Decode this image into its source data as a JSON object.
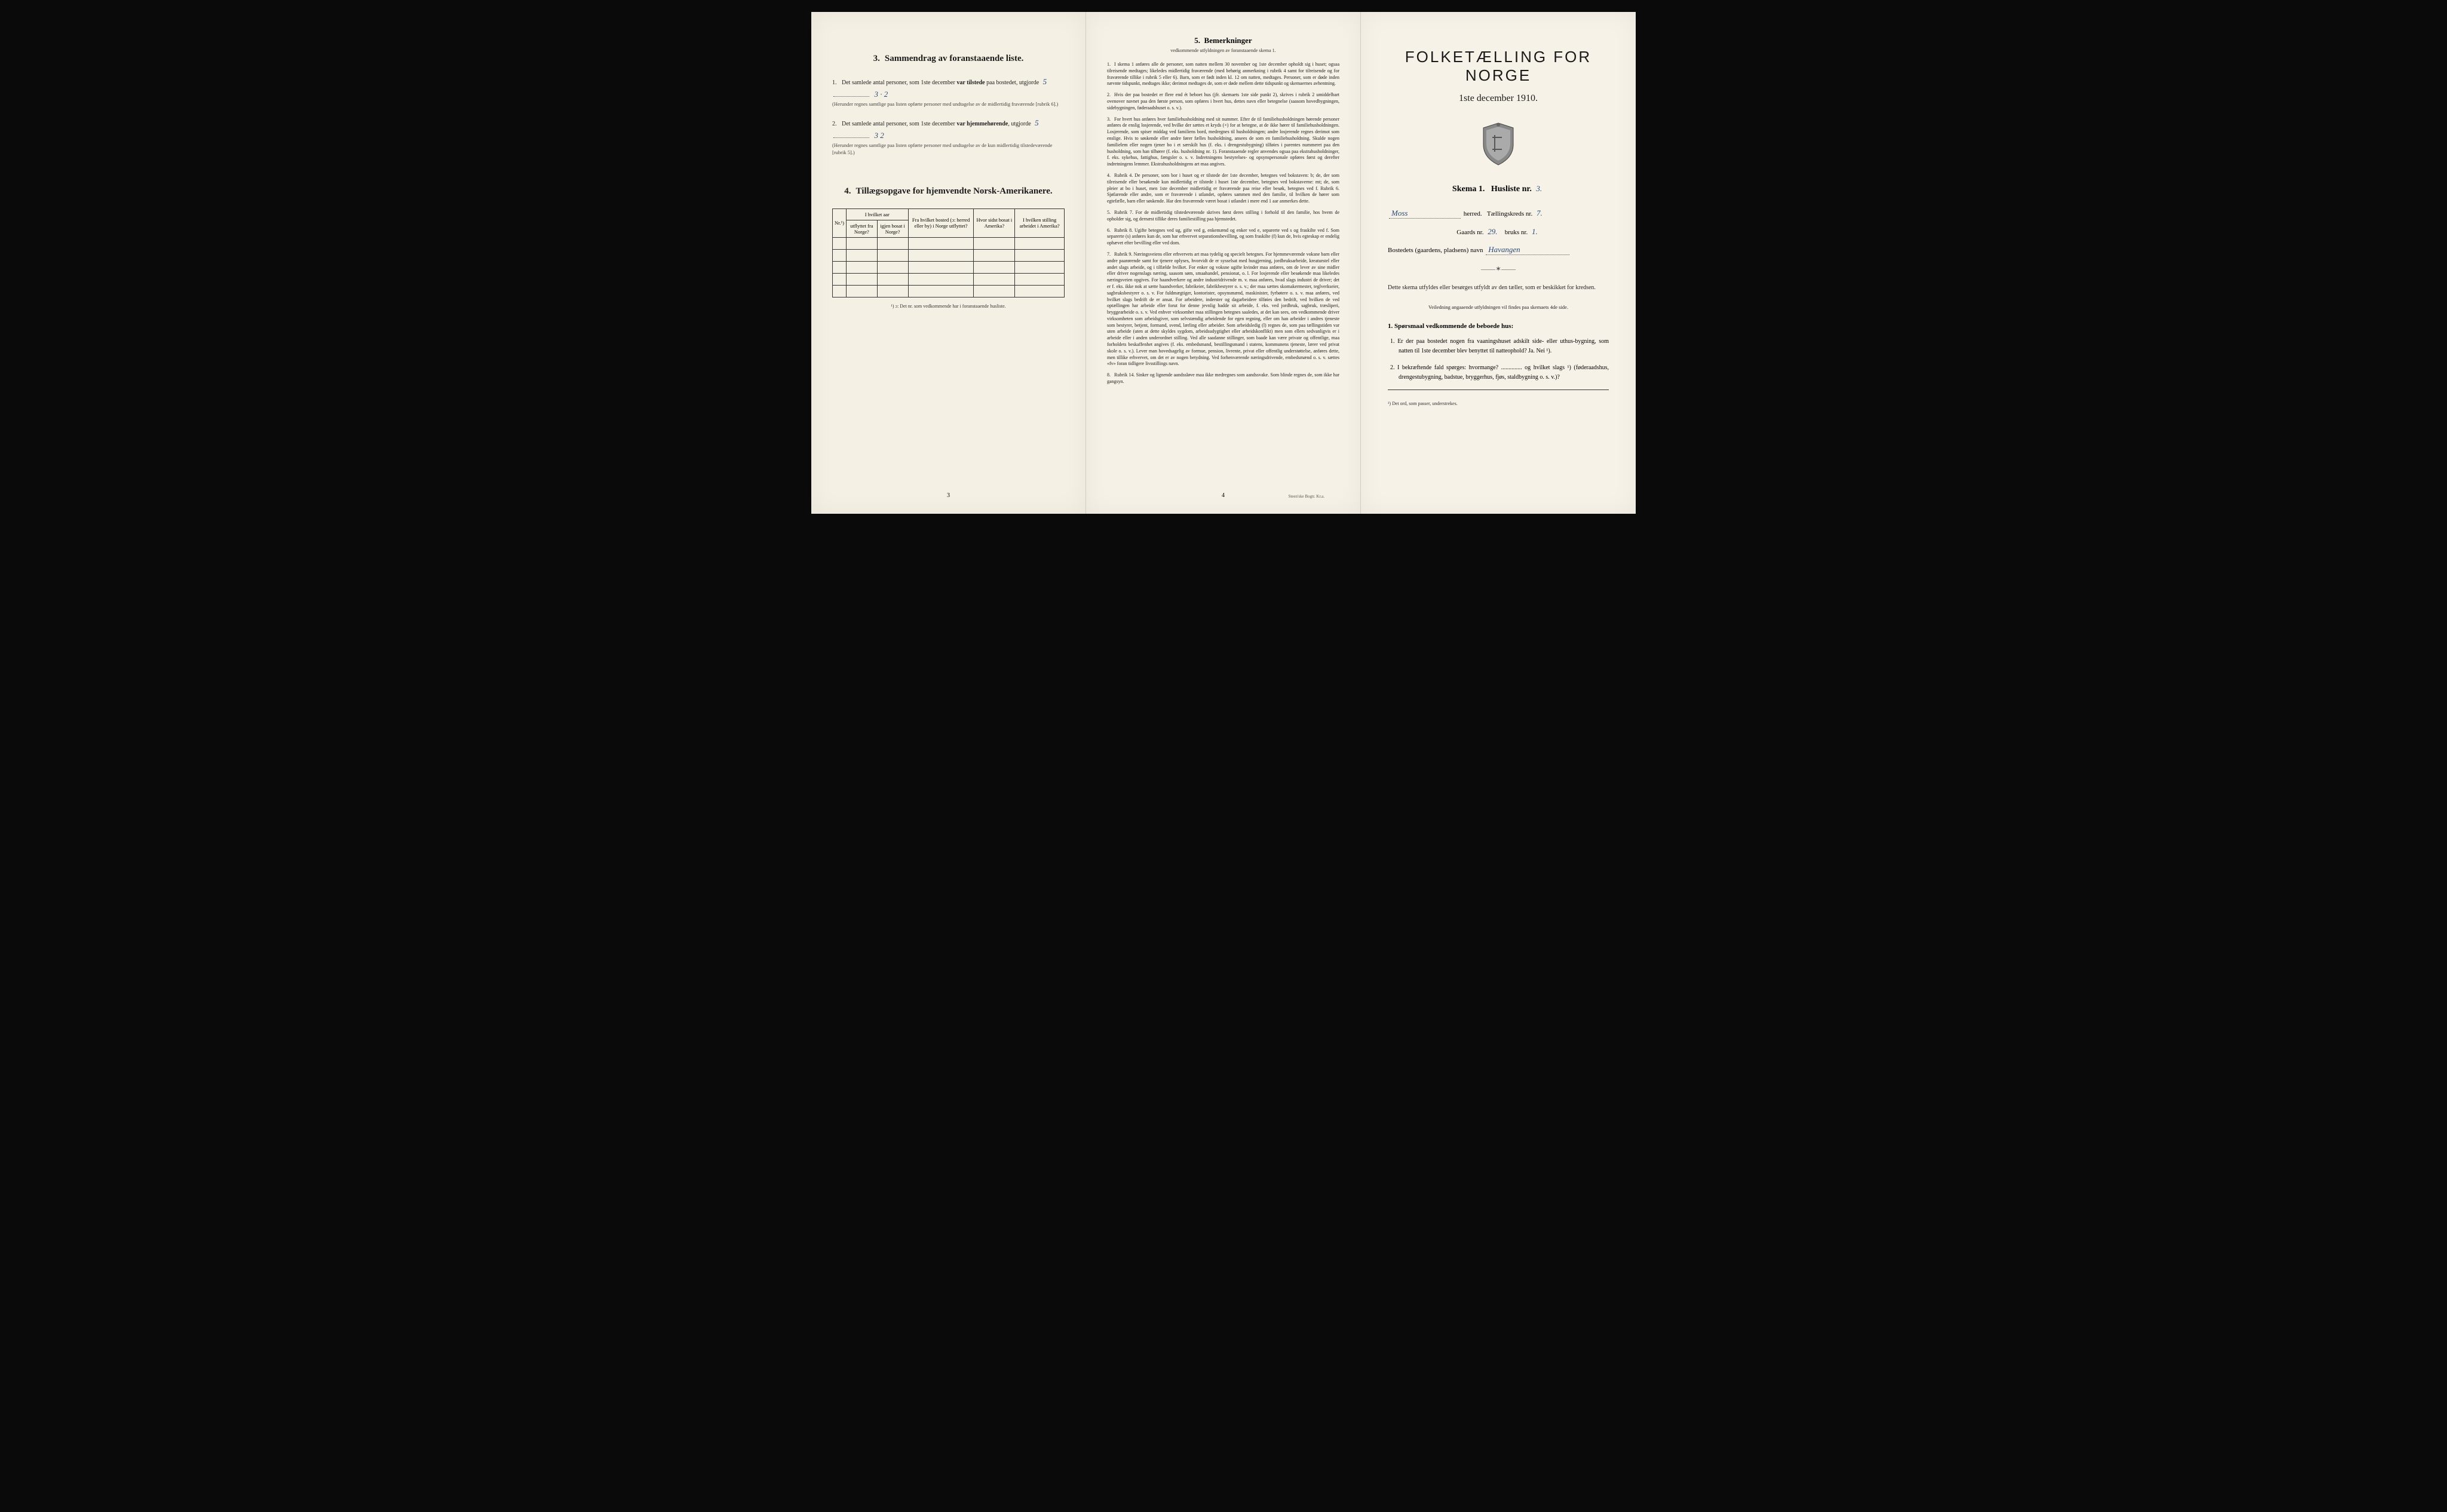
{
  "colors": {
    "paper": "#f5f0e4",
    "ink": "#1a1a1a",
    "handwriting": "#2a4a7a",
    "background": "#0a0a0a"
  },
  "page1": {
    "section3": {
      "number": "3.",
      "title": "Sammendrag av foranstaaende liste.",
      "item1": {
        "num": "1.",
        "text_a": "Det samlede antal personer, som 1ste december ",
        "bold_a": "var tilstede",
        "text_b": " paa bostedet, utgjorde",
        "value_main": "5",
        "value_sub": "3 · 2",
        "note": "(Herunder regnes samtlige paa listen opførte personer med undtagelse av de midlertidig fraværende [rubrik 6].)"
      },
      "item2": {
        "num": "2.",
        "text_a": "Det samlede antal personer, som 1ste december ",
        "bold_a": "var hjemmehørende",
        "text_b": ", utgjorde",
        "value_main": "5",
        "value_sub": "3 2",
        "note": "(Herunder regnes samtlige paa listen opførte personer med undtagelse av de kun midlertidig tilstedeværende [rubrik 5].)"
      }
    },
    "section4": {
      "number": "4.",
      "title": "Tillægsopgave for hjemvendte Norsk-Amerikanere.",
      "table": {
        "headers": {
          "nr": "Nr.¹)",
          "col_group": "I hvilket aar",
          "utflyttet": "utflyttet fra Norge?",
          "igjen": "igjen bosat i Norge?",
          "bosted": "Fra hvilket bosted (ɔ: herred eller by) i Norge utflyttet?",
          "sidst": "Hvor sidst bosat i Amerika?",
          "stilling": "I hvilken stilling arbeidet i Amerika?"
        },
        "empty_rows": 5
      },
      "footnote": "¹) ɔ: Det nr. som vedkommende har i foranstaaende husliste."
    },
    "page_number": "3"
  },
  "page2": {
    "section5": {
      "number": "5.",
      "title": "Bemerkninger",
      "subtitle": "vedkommende utfyldningen av foranstaaende skema 1."
    },
    "remarks": [
      {
        "n": "1.",
        "t": "I skema 1 anføres alle de personer, som natten mellem 30 november og 1ste december opholdt sig i huset; ogsaa tilreisende medtages; likeledes midlertidig fraværende (med behørig anmerkning i rubrik 4 samt for tilreisende og for fraværende tillike i rubrik 5 eller 6). Barn, som er født inden kl. 12 om natten, medtages. Personer, som er døde inden nævnte tidspunkt, medtages ikke; derimot medtages de, som er døde mellem dette tidspunkt og skemaernes avhentning."
      },
      {
        "n": "2.",
        "t": "Hvis der paa bostedet er flere end ét beboet hus (jfr. skemaets 1ste side punkt 2), skrives i rubrik 2 umiddelbart ovenover navnet paa den første person, som opføres i hvert hus, dettes navn eller betegnelse (saasom hovedbygningen, sidebygningen, føderaadshuset o. s. v.)."
      },
      {
        "n": "3.",
        "t": "For hvert hus anføres hver familiehusholdning med sit nummer. Efter de til familiehusholdningen hørende personer anføres de enslig losjerende, ved hvilke der sættes et kryds (×) for at betegne, at de ikke hører til familiehusholdningen. Losjerende, som spiser middag ved familiens bord, medregnes til husholdningen; andre losjerende regnes derimot som enslige. Hvis to søskende eller andre fører fælles husholdning, ansees de som en familiehusholdning. Skulde nogen familielem eller nogen tjener bo i et særskilt hus (f. eks. i drengestubygning) tilføies i parentes nummeret paa den husholdning, som han tilhører (f. eks. husholdning nr. 1).     Foranstaaende regler anvendes ogsaa paa ekstrahusholdninger, f. eks. sykehus, fattighus, fængsler o. s. v. Indretningens bestyrelses- og opsynspersonale opføres først og derefter indretningens lemmer. Ekstrahusholdningens art maa angives."
      },
      {
        "n": "4.",
        "t": "Rubrik 4. De personer, som bor i huset og er tilstede der 1ste december, betegnes ved bokstaven: b; de, der som tilreisende eller besøkende kun midlertidig er tilstede i huset 1ste december, betegnes ved bokstaverne: mt; de, som pleier at bo i huset, men 1ste december midlertidig er fraværende paa reise eller besøk, betegnes ved f.     Rubrik 6. Sjøfarende eller andre, som er fraværende i utlandet, opføres sammen med den familie, til hvilken de hører som egtefælle, barn eller søskende.     Har den fraværende været bosat i utlandet i mere end 1 aar anmerkes dette."
      },
      {
        "n": "5.",
        "t": "Rubrik 7. For de midlertidig tilstedeværende skrives først deres stilling i forhold til den familie, hos hvem de opholder sig, og dernæst tillike deres familiestilling paa hjemstedet."
      },
      {
        "n": "6.",
        "t": "Rubrik 8. Ugifte betegnes ved ug, gifte ved g, enkemænd og enker ved e, separerte ved s og fraskilte ved f. Som separerte (s) anføres kun de, som har erhvervet separationsbevilling, og som fraskilte (f) kun de, hvis egteskap er endelig ophævet efter bevilling eller ved dom."
      },
      {
        "n": "7.",
        "t": "Rubrik 9. Næringsveiens eller erhvervets art maa tydelig og specielt betegnes.     For hjemmeværende voksne barn eller andre paarørende samt for tjenere oplyses, hvorvidt de er sysselsat med husgjerning, jordbruksarbeide, kreaturstel eller andet slags arbeide, og i tilfælde hvilket. For enker og voksne ugifte kvinder maa anføres, om de lever av sine midler eller driver nogenslags næring, saasom søm, smaahandel, pensionat, o. l.     For losjerende eller besøkende maa likeledes næringsveien opgives.     For haandverkere og andre industridrivende m. v. maa anføres, hvad slags industri de driver; det er f. eks. ikke nok at sætte haandverker, fabrikeier, fabrikbestyrer o. s. v.; der maa sættes skomaker­mester, teglverkseier, sagbruksbestyrer o. s. v.     For fuldmægtiger, kontorister, opsynsmænd, maskinister, fyrbøtere o. s. v. maa anføres, ved hvilket slags bedrift de er ansat.     For arbeidere, inderster og dagarbeidere tilføies den bedrift, ved hvilken de ved optællingen har arbeide eller forut for denne jevnlig hadde sit arbeide, f. eks. ved jordbruk, sagbruk, træsliperi, bryggearbeide o. s. v.     Ved enhver virksomhet maa stillingen betegnes saaledes, at det kan sees, om vedkommende driver virksomheten som arbeidsgiver, som selvstændig arbeidende for egen regning, eller om han arbeider i andres tjeneste som bestyrer, betjent, formand, svend, lærling eller arbeider.     Som arbeidsledig (l) regnes de, som paa tællingstiden var uten arbeide (uten at dette skyldes sygdom, arbeidsudygtighet eller arbeidskonflikt) men som ellers sedvanligvis er i arbeide eller i anden underordnet stilling.     Ved alle saadanne stillinger, som baade kan være private og offentlige, maa forholdets beskaffenhet angives (f. eks. embedsmand, bestillingsmand i statens, kommunens tjeneste, lærer ved privat skole o. s. v.).     Lever man hovedsagelig av formue, pension, livrente, privat eller offentlig understøttelse, anføres dette, men tillike erhvervet, om det er av nogen betydning.     Ved forhenværende næringsdrivende, embedsmænd o. s. v. sættes «fv» foran tidligere livsstillings navn."
      },
      {
        "n": "8.",
        "t": "Rubrik 14. Sinker og lignende aandssløve maa ikke medregnes som aandssvake. Som blinde regnes de, som ikke har gangsyn."
      }
    ],
    "page_number": "4",
    "printer": "Steen'ske Bogtr. Kr.a."
  },
  "page3": {
    "main_title": "FOLKETÆLLING FOR NORGE",
    "date_line": "1ste december 1910.",
    "skema": {
      "label_a": "Skema 1.",
      "label_b": "Husliste nr.",
      "value": "3."
    },
    "fields": {
      "herred": {
        "value": "Moss",
        "label": "herred.",
        "kreds_label": "Tællingskreds nr.",
        "kreds_value": "7."
      },
      "gaard": {
        "label_a": "Gaards nr.",
        "value_a": "29.",
        "label_b": "bruks nr.",
        "value_b": "1."
      },
      "bosted": {
        "label": "Bostedets (gaardens, pladsens) navn",
        "value": "Havangen"
      }
    },
    "body1": "Dette skema utfyldes eller besørges utfyldt av den tæller, som er beskikket for kredsen.",
    "body2": "Veiledning angaaende utfyldningen vil findes paa skemaets 4de side.",
    "questions": {
      "heading": "1. Spørsmaal vedkommende de beboede hus:",
      "q1": {
        "num": "1.",
        "text": "Er der paa bostedet nogen fra vaaningshuset adskilt side- eller uthus-bygning, som natten til 1ste december blev benyttet til natteophold?  Ja.  Nei ¹).",
        "ja": "Ja.",
        "nei": "Nei"
      },
      "q2": {
        "num": "2.",
        "text": "I bekræftende fald spørges: hvormange? .............. og hvilket slags ¹) (føderaadshus, drengestubygning, badstue, bryggerhus, fjøs, staldbygning o. s. v.)?"
      }
    },
    "footnote": "¹) Det ord, som passer, understrekes."
  }
}
